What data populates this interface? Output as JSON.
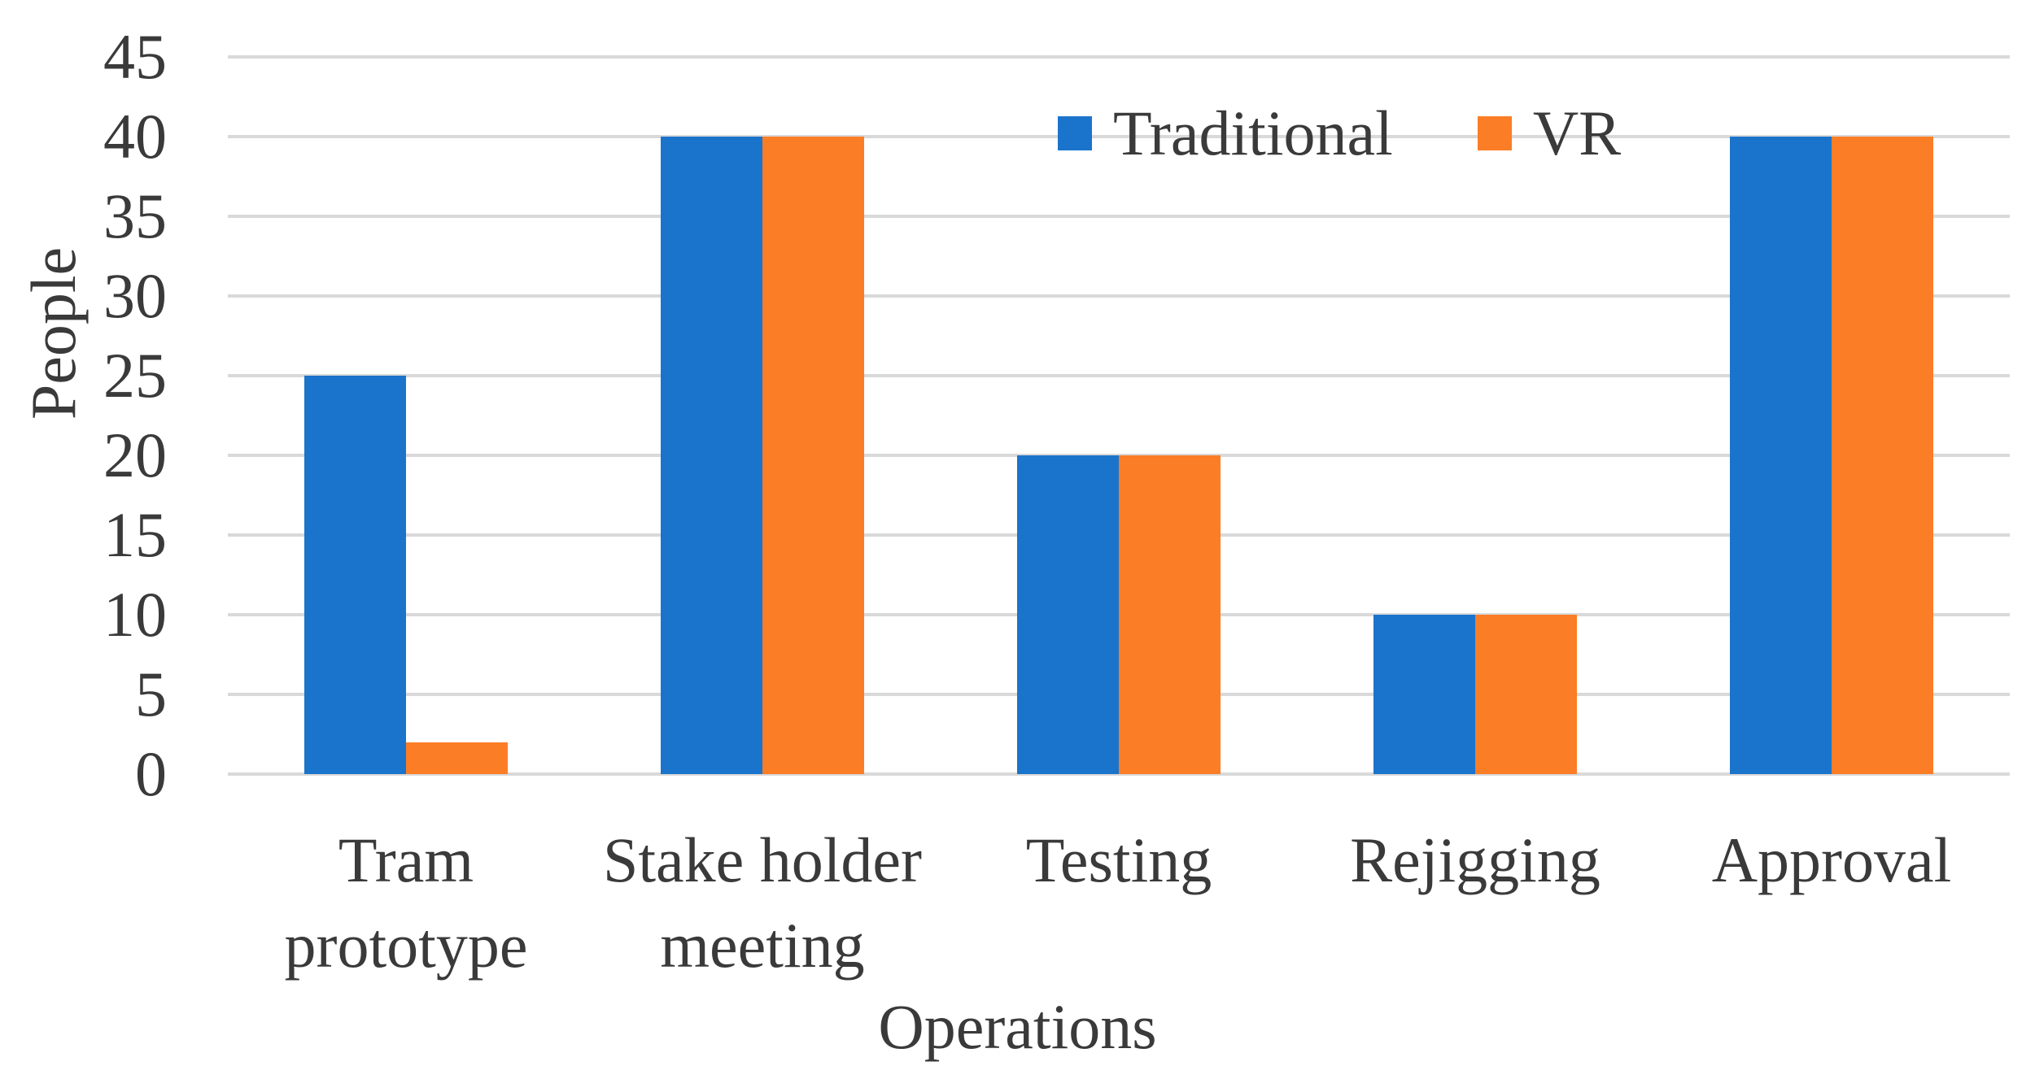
{
  "chart_data": {
    "type": "bar",
    "title": "",
    "categories": [
      "Tram\nprototype",
      "Stake holder\nmeeting",
      "Testing",
      "Rejigging",
      "Approval"
    ],
    "series": [
      {
        "name": "Traditional",
        "color": "#1B74CB",
        "values": [
          25,
          40,
          20,
          10,
          40
        ]
      },
      {
        "name": "VR",
        "color": "#FB7D26",
        "values": [
          2,
          40,
          20,
          10,
          40
        ]
      }
    ],
    "xlabel": "Operations",
    "ylabel": "People",
    "ylim": [
      0,
      45
    ],
    "ytick_step": 5,
    "yticks": [
      45,
      40,
      35,
      30,
      25,
      20,
      15,
      10,
      5,
      0
    ],
    "grid": true,
    "legend_position": "top-center-right",
    "legend_labels": [
      "Traditional",
      "VR"
    ]
  },
  "colors": {
    "gridline": "#D9D9D9",
    "text": "#3A3A3A",
    "background": "#FFFFFF",
    "traditional": "#1B74CB",
    "vr": "#FB7D26"
  }
}
